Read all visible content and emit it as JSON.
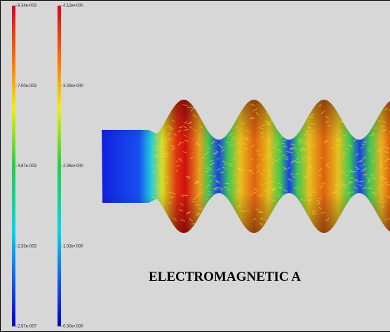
{
  "colorbars": [
    {
      "labels": [
        "9.34e-003",
        "7.00e-003",
        "4.67e-003",
        "2.33e-003",
        "2.57e-007"
      ]
    },
    {
      "labels": [
        "4.12e+000",
        "3.09e+000",
        "2.06e+000",
        "1.03e+000",
        "0.00e+000"
      ]
    }
  ],
  "caption": "ELECTROMAGNETIC A"
}
